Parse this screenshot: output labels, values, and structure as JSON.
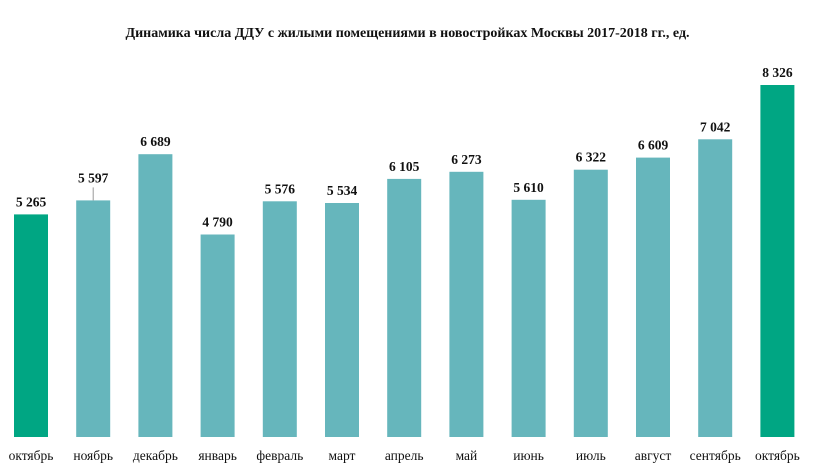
{
  "chart_data": {
    "type": "bar",
    "title": "Динамика числа ДДУ с жилыми помещениями в новостройках Москвы 2017-2018 гг., ед.",
    "categories": [
      "октябрь",
      "ноябрь",
      "декабрь",
      "январь",
      "февраль",
      "март",
      "апрель",
      "май",
      "июнь",
      "июль",
      "август",
      "сентябрь",
      "октябрь"
    ],
    "values": [
      5265,
      5597,
      6689,
      4790,
      5576,
      5534,
      6105,
      6273,
      5610,
      6322,
      6609,
      7042,
      8326
    ],
    "value_labels": [
      "5 265",
      "5 597",
      "6 689",
      "4 790",
      "5 576",
      "5 534",
      "6 105",
      "6 273",
      "5 610",
      "6 322",
      "6 609",
      "7 042",
      "8 326"
    ],
    "highlighted": [
      0,
      12
    ],
    "ylim": [
      0,
      8326
    ],
    "grid": false,
    "legend": "none",
    "colors": {
      "bar": "#66b6bc",
      "highlight": "#00a683",
      "text": "#111111",
      "leader_line": "#999999"
    }
  }
}
